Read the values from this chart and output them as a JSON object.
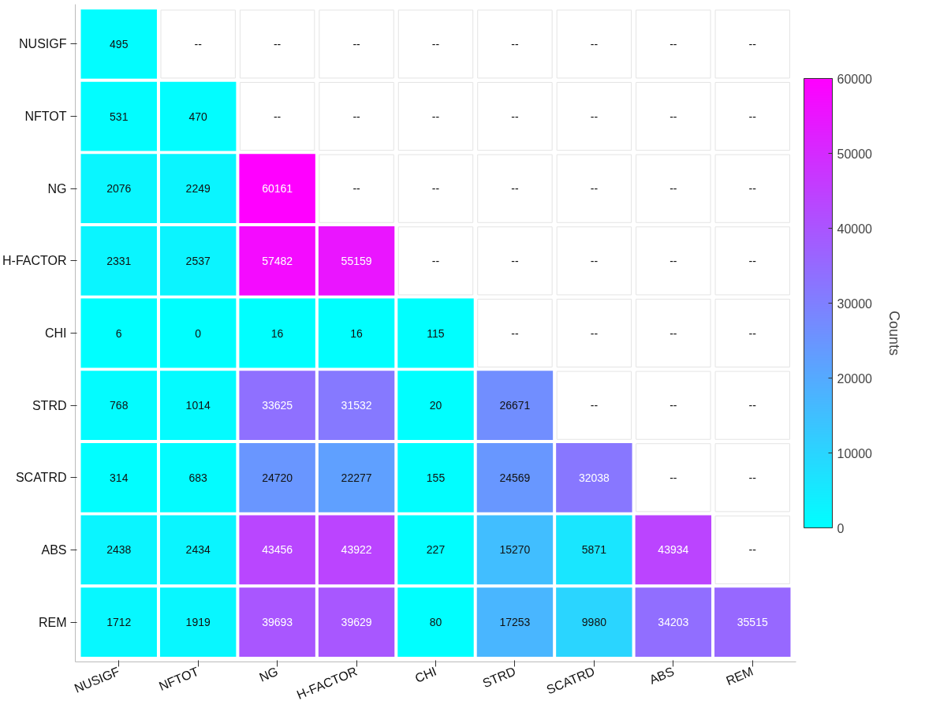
{
  "chart_data": {
    "type": "heatmap",
    "clabel": "Counts",
    "categories": [
      "NUSIGF",
      "NFTOT",
      "NG",
      "H-FACTOR",
      "CHI",
      "STRD",
      "SCATRD",
      "ABS",
      "REM"
    ],
    "y_categories": [
      "NUSIGF",
      "NFTOT",
      "NG",
      "H-FACTOR",
      "CHI",
      "STRD",
      "SCATRD",
      "ABS",
      "REM"
    ],
    "cells": [
      [
        495,
        null,
        null,
        null,
        null,
        null,
        null,
        null,
        null
      ],
      [
        531,
        470,
        null,
        null,
        null,
        null,
        null,
        null,
        null
      ],
      [
        2076,
        2249,
        60161,
        null,
        null,
        null,
        null,
        null,
        null
      ],
      [
        2331,
        2537,
        57482,
        55159,
        null,
        null,
        null,
        null,
        null
      ],
      [
        6,
        0,
        16,
        16,
        115,
        null,
        null,
        null,
        null
      ],
      [
        768,
        1014,
        33625,
        31532,
        20,
        26671,
        null,
        null,
        null
      ],
      [
        314,
        683,
        24720,
        22277,
        155,
        24569,
        32038,
        null,
        null
      ],
      [
        2438,
        2434,
        43456,
        43922,
        227,
        15270,
        5871,
        43934,
        null
      ],
      [
        1712,
        1919,
        39693,
        39629,
        80,
        17253,
        9980,
        34203,
        35515
      ]
    ],
    "cell_labels": [
      [
        "495",
        "--",
        "--",
        "--",
        "--",
        "--",
        "--",
        "--",
        "--"
      ],
      [
        "531",
        "470",
        "--",
        "--",
        "--",
        "--",
        "--",
        "--",
        "--"
      ],
      [
        "2076",
        "2249",
        "60161",
        "--",
        "--",
        "--",
        "--",
        "--",
        "--"
      ],
      [
        "2331",
        "2537",
        "57482",
        "55159",
        "--",
        "--",
        "--",
        "--",
        "--"
      ],
      [
        "6",
        "0",
        "16",
        "16",
        "115",
        "--",
        "--",
        "--",
        "--"
      ],
      [
        "768",
        "1014",
        "33625",
        "31532",
        "20",
        "26671",
        "--",
        "--",
        "--"
      ],
      [
        "314",
        "683",
        "24720",
        "22277",
        "155",
        "24569",
        "32038",
        "--",
        "--"
      ],
      [
        "2438",
        "2434",
        "43456",
        "43922",
        "227",
        "15270",
        "5871",
        "43934",
        "--"
      ],
      [
        "1712",
        "1919",
        "39693",
        "39629",
        "80",
        "17253",
        "9980",
        "34203",
        "35515"
      ]
    ],
    "data_labels": true,
    "clim": [
      0,
      60000
    ],
    "cticks": [
      0,
      10000,
      20000,
      30000,
      40000,
      50000,
      60000
    ]
  }
}
